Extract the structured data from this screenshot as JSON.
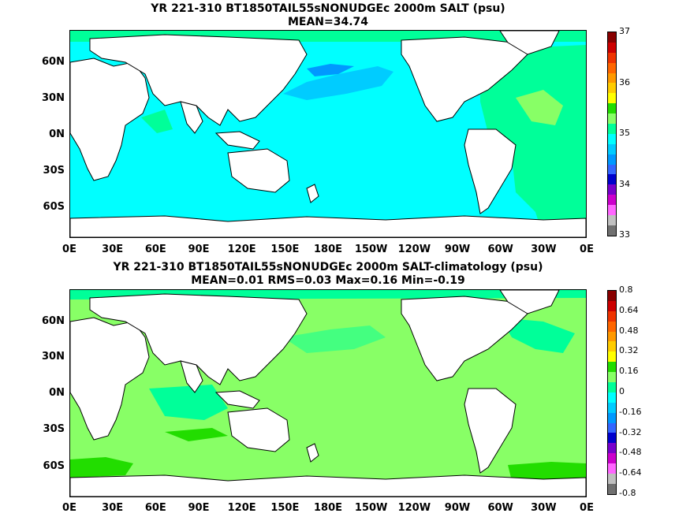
{
  "top": {
    "title_line1": "YR 221-310 BT1850TAIL55sNONUDGEc 2000m SALT (psu)",
    "title_line2": "MEAN=34.74",
    "colorbar_labels": [
      "37",
      "36",
      "35",
      "34",
      "33"
    ],
    "colorbar_colors": [
      "#880000",
      "#cc0000",
      "#ee3300",
      "#ff6600",
      "#ff9900",
      "#ffcc00",
      "#ffff00",
      "#22dd00",
      "#88ff66",
      "#00ff99",
      "#00ffff",
      "#00ccff",
      "#0099ff",
      "#3366ff",
      "#0000cc",
      "#7700cc",
      "#cc00cc",
      "#ff66ff",
      "#c0c0c0",
      "#707070"
    ]
  },
  "bottom": {
    "title_line1": "YR 221-310 BT1850TAIL55sNONUDGEc 2000m SALT-climatology (psu)",
    "title_line2": "MEAN=0.01   RMS=0.03   Max=0.16   Min=-0.19",
    "colorbar_labels": [
      "0.8",
      "0.64",
      "0.48",
      "0.32",
      "0.16",
      "0",
      "-0.16",
      "-0.32",
      "-0.48",
      "-0.64",
      "-0.8"
    ],
    "colorbar_colors": [
      "#880000",
      "#cc0000",
      "#ee3300",
      "#ff6600",
      "#ff9900",
      "#ffcc00",
      "#ffff00",
      "#22dd00",
      "#88ff66",
      "#00ff99",
      "#00ffff",
      "#00ccff",
      "#0099ff",
      "#3366ff",
      "#0000cc",
      "#7700cc",
      "#cc00cc",
      "#ff66ff",
      "#c0c0c0",
      "#707070"
    ]
  },
  "axes": {
    "lat_labels": [
      "60N",
      "30N",
      "0N",
      "30S",
      "60S"
    ],
    "lon_labels": [
      "0E",
      "30E",
      "60E",
      "90E",
      "120E",
      "150E",
      "180E",
      "150W",
      "120W",
      "90W",
      "60W",
      "30W",
      "0E"
    ]
  },
  "colors": {
    "land": "#ffffff",
    "coast": "#000000",
    "top_base": "#00ffff",
    "top_light": "#00ff99",
    "top_green": "#88ff66",
    "top_blue": "#00ccff",
    "top_deep": "#0099ff",
    "bottom_base": "#88ff66",
    "bottom_green": "#22dd00",
    "bottom_cyan": "#00ff99",
    "bottom_teal": "#00ffff"
  }
}
